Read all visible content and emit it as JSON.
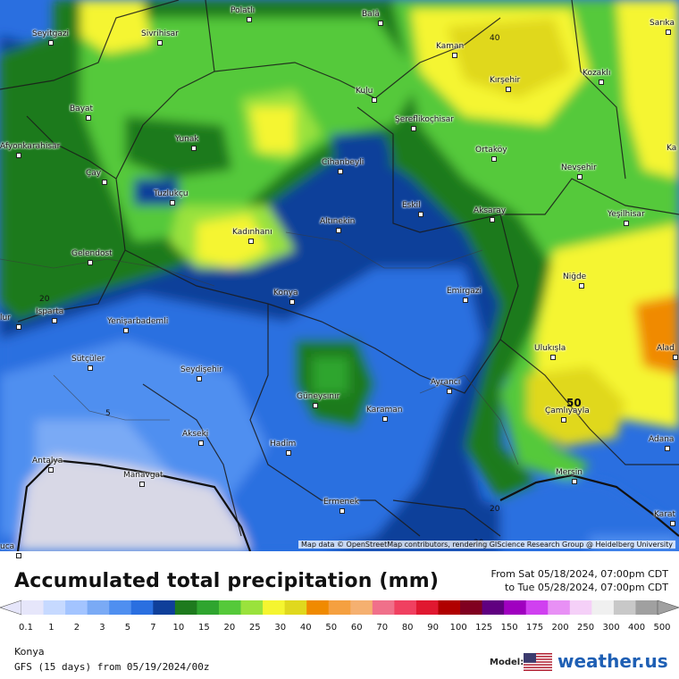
{
  "map": {
    "attribution": "Map data © OpenStreetMap contributors, rendering GIScience Research Group @ Heidelberg University",
    "cities": [
      {
        "name": "Polatlı"
      },
      {
        "name": "Balâ"
      },
      {
        "name": "Sarıka"
      },
      {
        "name": "Seyitgazi"
      },
      {
        "name": "Sivrihisar"
      },
      {
        "name": "Kaman"
      },
      {
        "name": "Kozaklı"
      },
      {
        "name": "Kırşehir"
      },
      {
        "name": "Kulu"
      },
      {
        "name": "Bayat"
      },
      {
        "name": "Şereflikoçhisar"
      },
      {
        "name": "Afyonkarahisar"
      },
      {
        "name": "Yunak"
      },
      {
        "name": "Ortaköy"
      },
      {
        "name": "Cihanbeyli"
      },
      {
        "name": "Nevşehir"
      },
      {
        "name": "Çay"
      },
      {
        "name": "Tuzlukçu"
      },
      {
        "name": "Kadınhanı"
      },
      {
        "name": "Altınekin"
      },
      {
        "name": "Eskil"
      },
      {
        "name": "Aksaray"
      },
      {
        "name": "Yeşilhisar"
      },
      {
        "name": "Gelendost"
      },
      {
        "name": "Niğde"
      },
      {
        "name": "Konya"
      },
      {
        "name": "Emirgazi"
      },
      {
        "name": "Isparta"
      },
      {
        "name": "Yenişarbademli"
      },
      {
        "name": "Ulukışla"
      },
      {
        "name": "Alad"
      },
      {
        "name": "Sütçüler"
      },
      {
        "name": "Seydişehir"
      },
      {
        "name": "Ayrancı"
      },
      {
        "name": "Güneysınır"
      },
      {
        "name": "Karaman"
      },
      {
        "name": "Çamlıyayla"
      },
      {
        "name": "Akseki"
      },
      {
        "name": "Hadim"
      },
      {
        "name": "Adana"
      },
      {
        "name": "Antalya"
      },
      {
        "name": "Manavgat"
      },
      {
        "name": "Mersin"
      },
      {
        "name": "Ermenek"
      },
      {
        "name": "Karat"
      },
      {
        "name": "Ka"
      },
      {
        "name": "lur"
      },
      {
        "name": "uca"
      }
    ],
    "contour_labels": [
      "40",
      "20",
      "5",
      "50",
      "20",
      "20"
    ]
  },
  "title": "Accumulated total precipitation (mm)",
  "period": {
    "from": "From Sat 05/18/2024, 07:00pm CDT",
    "to": "to Tue 05/28/2024, 07:00pm CDT"
  },
  "legend": {
    "unit": "mm",
    "levels": [
      "0.1",
      "1",
      "2",
      "3",
      "5",
      "7",
      "10",
      "15",
      "20",
      "25",
      "30",
      "40",
      "50",
      "60",
      "70",
      "80",
      "90",
      "100",
      "125",
      "150",
      "175",
      "200",
      "250",
      "300",
      "400",
      "500"
    ],
    "colors": [
      "#e6e6fa",
      "#c6d9ff",
      "#a3c4ff",
      "#7aaaf5",
      "#4f8ff0",
      "#2a6fe0",
      "#0f3f9a",
      "#1e7a1e",
      "#2fa52f",
      "#55c93a",
      "#9ae23c",
      "#f5f530",
      "#e0d81e",
      "#f08a00",
      "#f5a040",
      "#f5b070",
      "#f0708a",
      "#f04060",
      "#e01830",
      "#b00000",
      "#800020",
      "#600080",
      "#a000c0",
      "#d040f0",
      "#e890f5",
      "#f5d0f8",
      "#f0f0f0",
      "#c8c8c8",
      "#a0a0a0"
    ]
  },
  "location": "Konya",
  "model_run": "GFS (15 days) from 05/19/2024/00z",
  "model_label": "Model:",
  "brand": "weather.us"
}
